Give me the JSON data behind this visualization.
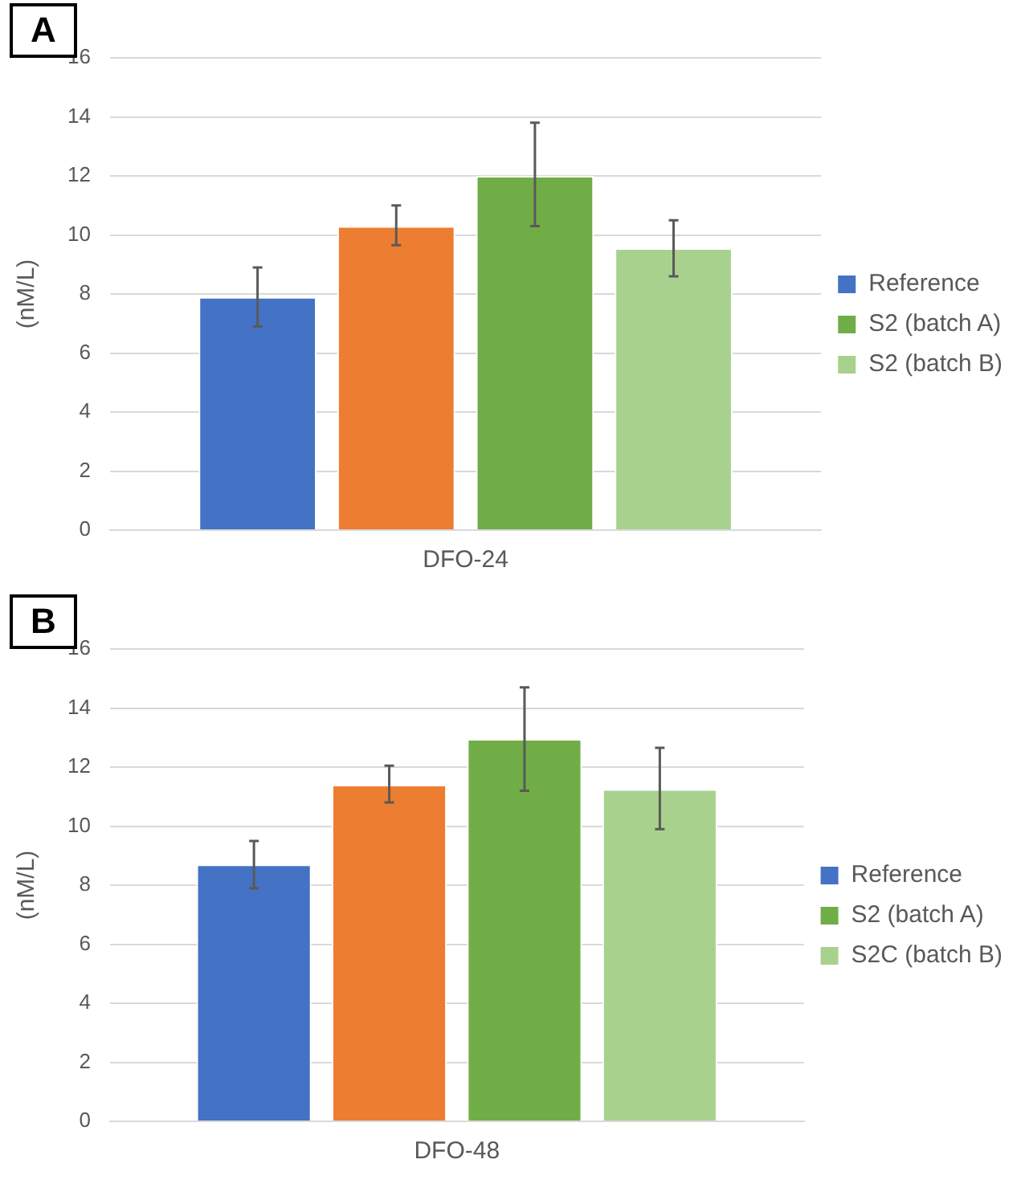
{
  "chart_data": [
    {
      "type": "bar",
      "title": "A",
      "ylabel": "(nM/L)",
      "categories": [
        "DFO-24"
      ],
      "series": [
        {
          "name": "Reference",
          "color": "#4472c4",
          "values": [
            7.9
          ],
          "errors": [
            [
              6.9,
              8.9
            ]
          ]
        },
        {
          "color": "#ed7d31",
          "values": [
            10.3
          ],
          "errors": [
            [
              9.65,
              11.0
            ]
          ]
        },
        {
          "name": "S2 (batch A)",
          "color": "#70ad47",
          "values": [
            12.0
          ],
          "errors": [
            [
              10.3,
              13.8
            ]
          ]
        },
        {
          "name": "S2 (batch B)",
          "color": "#a9d18e",
          "values": [
            9.55
          ],
          "errors": [
            [
              8.6,
              10.5
            ]
          ]
        }
      ],
      "ylim": [
        0,
        16
      ],
      "yticks": [
        0,
        2,
        4,
        6,
        8,
        10,
        12,
        14,
        16
      ],
      "grid": "y",
      "legend": "right"
    },
    {
      "type": "bar",
      "title": "B",
      "ylabel": "(nM/L)",
      "categories": [
        "DFO-48"
      ],
      "series": [
        {
          "name": "Reference",
          "color": "#4472c4",
          "values": [
            8.7
          ],
          "errors": [
            [
              7.9,
              9.5
            ]
          ]
        },
        {
          "color": "#ed7d31",
          "values": [
            11.4
          ],
          "errors": [
            [
              10.8,
              12.05
            ]
          ]
        },
        {
          "name": "S2 (batch A)",
          "color": "#70ad47",
          "values": [
            12.95
          ],
          "errors": [
            [
              11.2,
              14.7
            ]
          ]
        },
        {
          "name": "S2C (batch B)",
          "color": "#a9d18e",
          "values": [
            11.25
          ],
          "errors": [
            [
              9.9,
              12.65
            ]
          ]
        }
      ],
      "ylim": [
        0,
        16
      ],
      "yticks": [
        0,
        2,
        4,
        6,
        8,
        10,
        12,
        14,
        16
      ],
      "grid": "y",
      "legend": "right"
    }
  ]
}
